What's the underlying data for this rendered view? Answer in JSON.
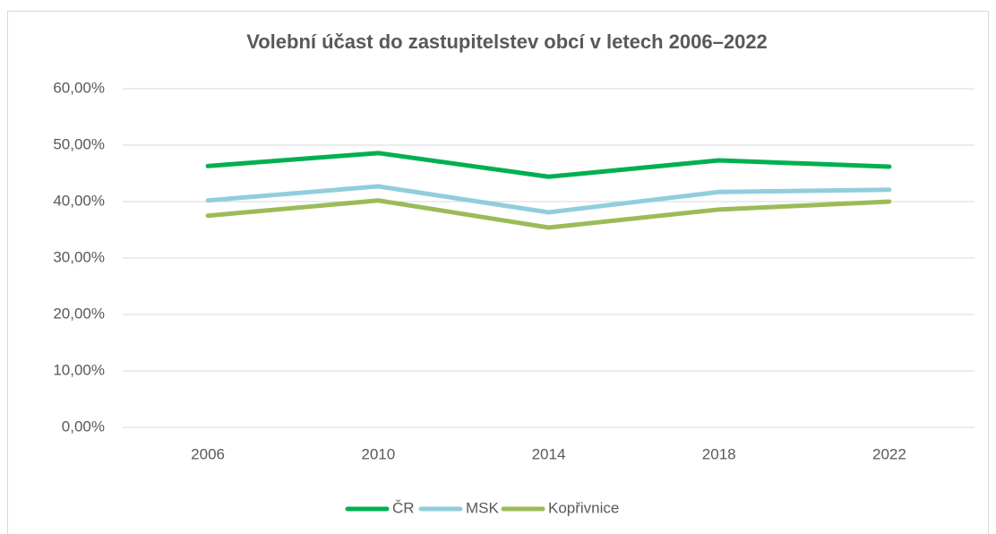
{
  "chart_data": {
    "type": "line",
    "title": "Volební účast do zastupitelstev obcí v letech 2006–2022",
    "categories": [
      "2006",
      "2010",
      "2014",
      "2018",
      "2022"
    ],
    "series": [
      {
        "name": "ČR",
        "color": "#00b050",
        "values": [
          46.3,
          48.6,
          44.4,
          47.3,
          46.2
        ]
      },
      {
        "name": "MSK",
        "color": "#92cddc",
        "values": [
          40.2,
          42.7,
          38.1,
          41.7,
          42.1
        ]
      },
      {
        "name": "Kopřivnice",
        "color": "#9bbb59",
        "values": [
          37.5,
          40.2,
          35.4,
          38.6,
          40.0
        ]
      }
    ],
    "ylim": [
      0,
      60
    ],
    "yticks": [
      {
        "value": 0,
        "label": "0,00%"
      },
      {
        "value": 10,
        "label": "10,00%"
      },
      {
        "value": 20,
        "label": "20,00%"
      },
      {
        "value": 30,
        "label": "30,00%"
      },
      {
        "value": 40,
        "label": "40,00%"
      },
      {
        "value": 50,
        "label": "50,00%"
      },
      {
        "value": 60,
        "label": "60,00%"
      }
    ],
    "grid": true,
    "legend": "bottom"
  }
}
